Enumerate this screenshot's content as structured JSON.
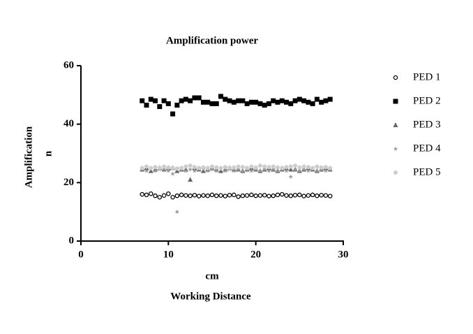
{
  "chart_data": {
    "type": "scatter",
    "title": "Amplification power",
    "xlabel": [
      "cm",
      "Working Distance"
    ],
    "ylabel": [
      "Amplification",
      "n"
    ],
    "xlim": [
      0,
      30
    ],
    "xticks": [
      0,
      10,
      20,
      30
    ],
    "ylim": [
      0,
      60
    ],
    "yticks": [
      0,
      20,
      40,
      60
    ],
    "x": [
      7,
      7.5,
      8,
      8.5,
      9,
      9.5,
      10,
      10.5,
      11,
      11.5,
      12,
      12.5,
      13,
      13.5,
      14,
      14.5,
      15,
      15.5,
      16,
      16.5,
      17,
      17.5,
      18,
      18.5,
      19,
      19.5,
      20,
      20.5,
      21,
      21.5,
      22,
      22.5,
      23,
      23.5,
      24,
      24.5,
      25,
      25.5,
      26,
      26.5,
      27,
      27.5,
      28,
      28.5
    ],
    "series": [
      {
        "name": "PED 1",
        "color": "#000000",
        "marker": "circle-open",
        "values": [
          16,
          15.8,
          16.2,
          15.5,
          15,
          15.6,
          16.2,
          15,
          15.5,
          15.8,
          15.6,
          15.5,
          15.7,
          15.4,
          15.6,
          15.5,
          15.8,
          15.5,
          15.6,
          15.4,
          15.7,
          15.8,
          15.2,
          15.5,
          15.6,
          15.8,
          15.5,
          15.6,
          15.7,
          15.4,
          15.5,
          15.8,
          16,
          15.6,
          15.5,
          15.7,
          15.8,
          15.4,
          15.6,
          15.8,
          15.5,
          15.7,
          15.6,
          15.4
        ]
      },
      {
        "name": "PED 2",
        "color": "#000000",
        "marker": "square",
        "values": [
          48,
          46.5,
          48.5,
          48,
          46,
          48,
          47,
          43.5,
          46.5,
          48,
          48.5,
          48,
          49,
          49,
          47.5,
          47.5,
          47,
          47,
          49.5,
          48.5,
          48,
          47.5,
          48,
          48,
          47,
          47.5,
          47.5,
          47,
          46.5,
          47,
          48,
          47.5,
          48,
          47.5,
          47,
          48,
          48.5,
          48,
          47.5,
          47,
          48.5,
          47.5,
          48,
          48.5
        ]
      },
      {
        "name": "PED 3",
        "color": "#666666",
        "marker": "triangle",
        "values": [
          24.5,
          25,
          24,
          24.5,
          25,
          24.5,
          25,
          25,
          24,
          24.5,
          24.5,
          21,
          25,
          24.5,
          24,
          24.5,
          25,
          24.5,
          24,
          24.5,
          25,
          24.5,
          24.5,
          24,
          24.5,
          25,
          24.5,
          24,
          24.5,
          25,
          24.5,
          24,
          24.5,
          25,
          24.5,
          24.5,
          24,
          24.5,
          25,
          24.5,
          24,
          24.5,
          25,
          24.5
        ]
      },
      {
        "name": "PED 4",
        "color": "#999999",
        "marker": "star",
        "values": [
          24.5,
          24,
          24.5,
          24,
          24.5,
          24.5,
          24,
          23,
          10,
          24.5,
          24,
          24.5,
          24,
          24.5,
          24.5,
          24,
          24.5,
          24,
          24.5,
          24,
          24.5,
          24,
          24.5,
          24,
          24.5,
          24,
          24.5,
          24,
          24.5,
          24,
          24.5,
          24,
          24.5,
          24,
          22,
          24.5,
          24,
          24.5,
          24,
          24.5,
          24,
          24.5,
          24,
          24.5
        ]
      },
      {
        "name": "PED 5",
        "color": "#cccccc",
        "marker": "circle",
        "values": [
          25,
          25.5,
          25,
          25.3,
          25,
          25.5,
          25.2,
          25,
          24.8,
          25,
          25.5,
          25.8,
          25.3,
          25,
          25.2,
          25,
          25.5,
          25.2,
          25,
          25.3,
          25,
          25.2,
          25.5,
          25.3,
          25,
          25.5,
          25.2,
          25.8,
          25.5,
          25.3,
          25.5,
          25.2,
          25,
          25.3,
          25.5,
          25.8,
          25.2,
          25.5,
          25.3,
          25,
          25.5,
          25.2,
          25.3,
          25
        ]
      }
    ]
  }
}
